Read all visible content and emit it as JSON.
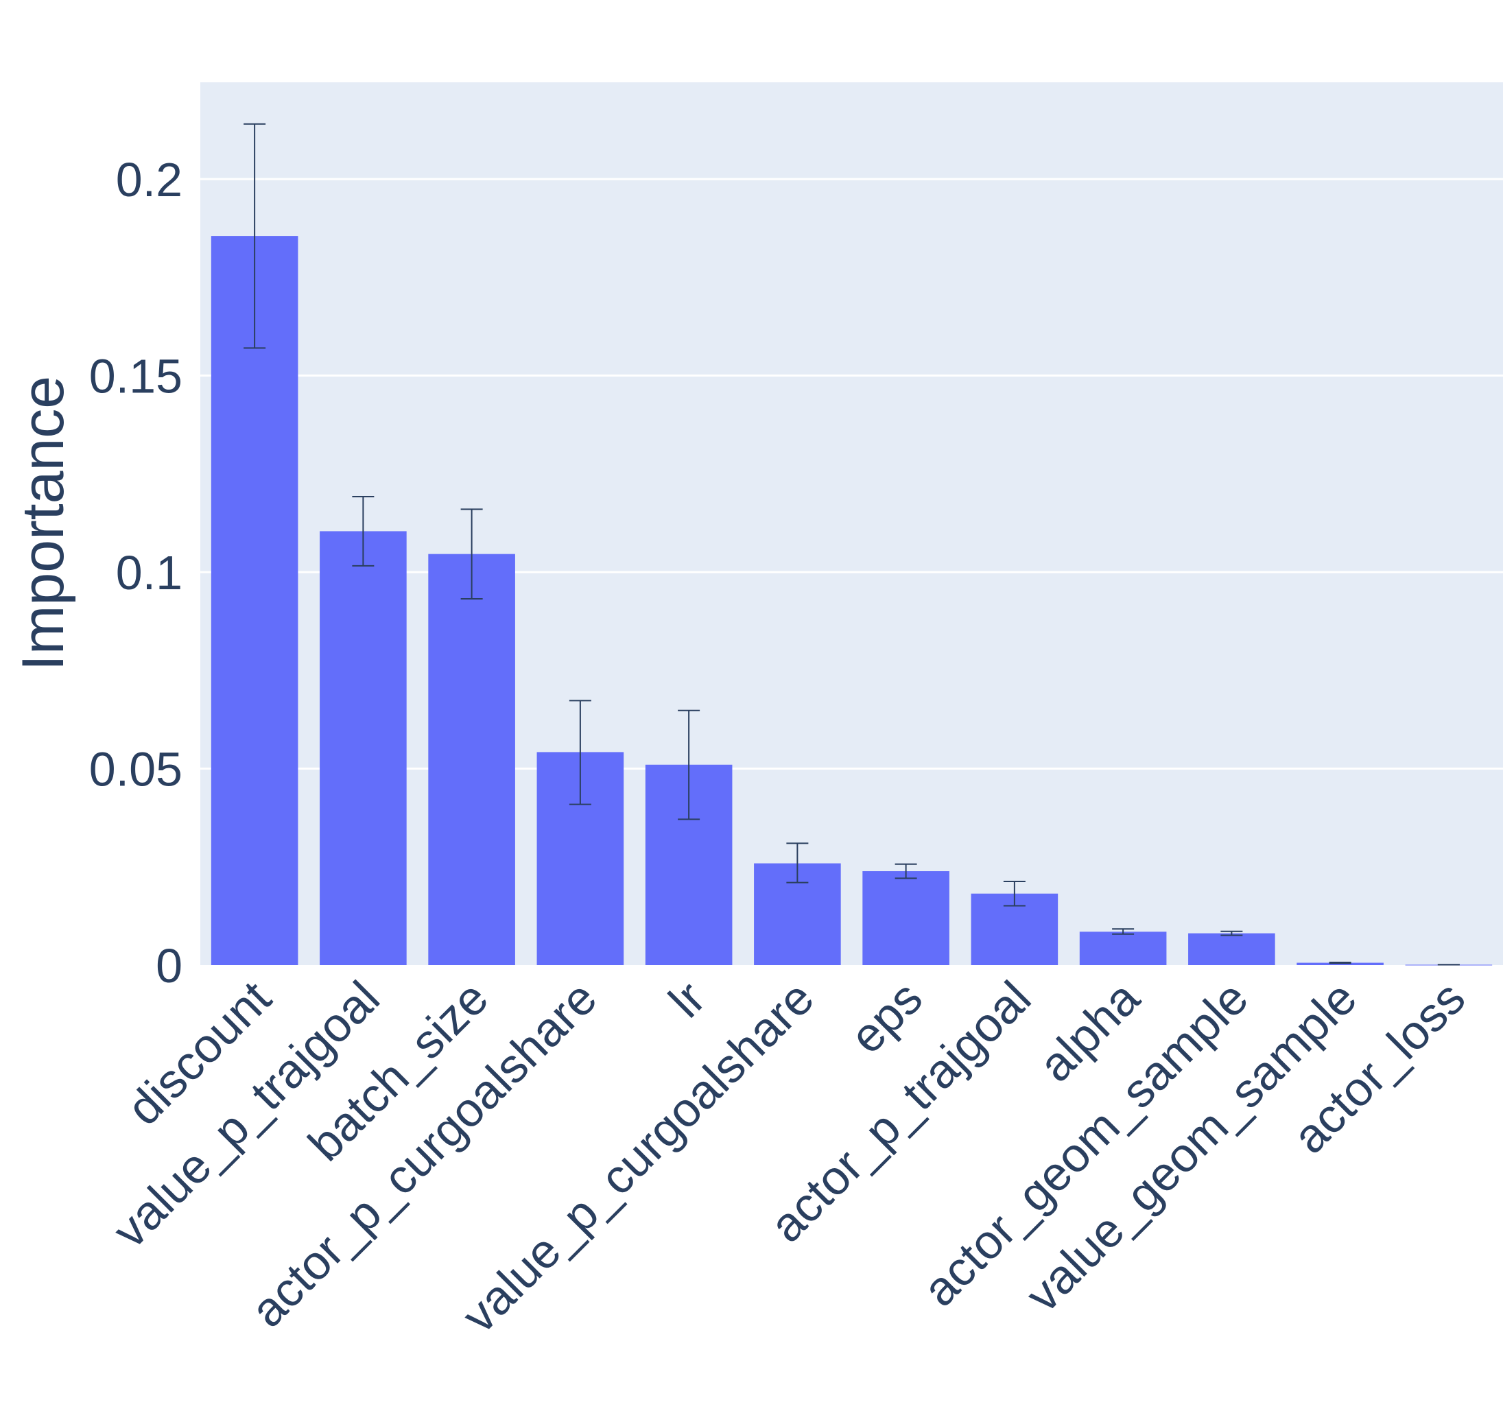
{
  "chart_data": {
    "type": "bar",
    "title": "",
    "xlabel": "",
    "ylabel": "Importance",
    "ylim": [
      0,
      0.2245
    ],
    "grid": true,
    "categories": [
      "discount",
      "value_p_trajgoal",
      "batch_size",
      "actor_p_curgoalshare",
      "lr",
      "value_p_curgoalshare",
      "eps",
      "actor_p_trajgoal",
      "alpha",
      "actor_geom_sample",
      "value_geom_sample",
      "actor_loss"
    ],
    "values": [
      0.1855,
      0.1104,
      0.1046,
      0.0542,
      0.051,
      0.0259,
      0.0239,
      0.0182,
      0.0085,
      0.0081,
      0.0006,
      0.0001
    ],
    "error_upper": [
      0.214,
      0.1192,
      0.116,
      0.0673,
      0.0648,
      0.031,
      0.0257,
      0.0213,
      0.0092,
      0.0086,
      0.0007,
      0.0001
    ],
    "error_lower": [
      0.157,
      0.1016,
      0.0932,
      0.0409,
      0.0371,
      0.021,
      0.0221,
      0.0151,
      0.0079,
      0.0076,
      0.0005,
      0.0001
    ],
    "yticks": [
      {
        "value": 0,
        "label": "0"
      },
      {
        "value": 0.05,
        "label": "0.05"
      },
      {
        "value": 0.1,
        "label": "0.1"
      },
      {
        "value": 0.15,
        "label": "0.15"
      },
      {
        "value": 0.2,
        "label": "0.2"
      }
    ],
    "colors": {
      "bar": "#636efa",
      "plot_bg": "#e5ecf6",
      "grid": "#ffffff",
      "error_bar": "#2a3f5f",
      "text": "#2a3f5f"
    }
  }
}
